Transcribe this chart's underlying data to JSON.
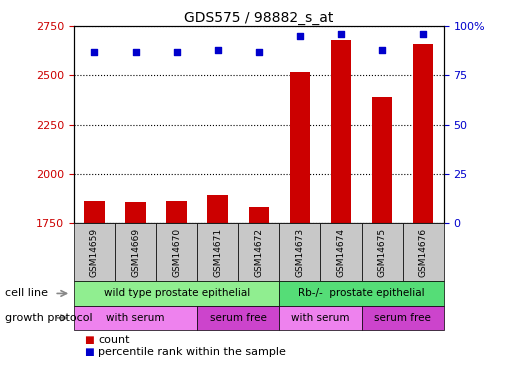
{
  "title": "GDS575 / 98882_s_at",
  "samples": [
    "GSM14659",
    "GSM14669",
    "GSM14670",
    "GSM14671",
    "GSM14672",
    "GSM14673",
    "GSM14674",
    "GSM14675",
    "GSM14676"
  ],
  "count_values": [
    1860,
    1855,
    1860,
    1895,
    1830,
    2520,
    2680,
    2390,
    2660
  ],
  "percentile_values": [
    87,
    87,
    87,
    88,
    87,
    95,
    96,
    88,
    96
  ],
  "ylim_left": [
    1750,
    2750
  ],
  "ylim_right": [
    0,
    100
  ],
  "yticks_left": [
    1750,
    2000,
    2250,
    2500,
    2750
  ],
  "yticks_right": [
    0,
    25,
    50,
    75,
    100
  ],
  "ytick_labels_right": [
    "0",
    "25",
    "50",
    "75",
    "100%"
  ],
  "cell_line_groups": [
    {
      "label": "wild type prostate epithelial",
      "start": 0,
      "end": 4,
      "color": "#90ee90"
    },
    {
      "label": "Rb-/-  prostate epithelial",
      "start": 5,
      "end": 8,
      "color": "#55dd77"
    }
  ],
  "growth_protocol_groups": [
    {
      "label": "with serum",
      "start": 0,
      "end": 2,
      "color": "#ee82ee"
    },
    {
      "label": "serum free",
      "start": 3,
      "end": 4,
      "color": "#cc44cc"
    },
    {
      "label": "with serum",
      "start": 5,
      "end": 6,
      "color": "#ee82ee"
    },
    {
      "label": "serum free",
      "start": 7,
      "end": 8,
      "color": "#cc44cc"
    }
  ],
  "bar_color": "#cc0000",
  "dot_color": "#0000cc",
  "grid_color": "#000000",
  "tick_color_left": "#cc0000",
  "tick_color_right": "#0000cc",
  "cell_line_label": "cell line",
  "growth_protocol_label": "growth protocol",
  "legend_count_label": "count",
  "legend_percentile_label": "percentile rank within the sample",
  "bar_width": 0.5,
  "bg_color": "#ffffff",
  "sample_box_color": "#c8c8c8"
}
